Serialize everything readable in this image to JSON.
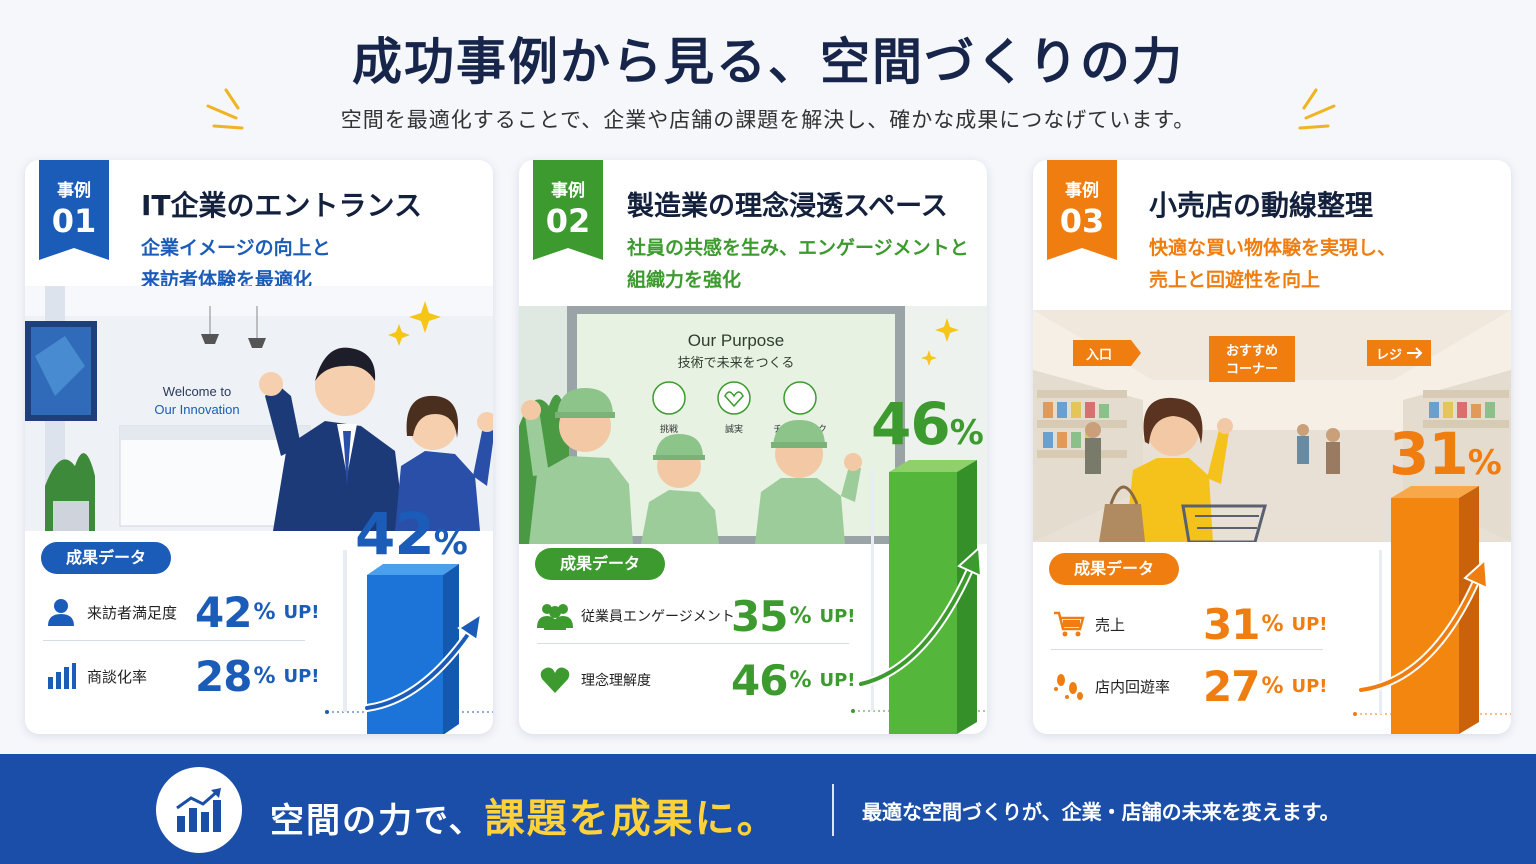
{
  "header": {
    "title": "成功事例から見る、空間づくりの力",
    "subtitle": "空間を最適化することで、企業や店舗の課題を解決し、確かな成果につなげています。"
  },
  "colors": {
    "blue": "#1b5cb8",
    "green": "#3c9a2e",
    "orange": "#f07d10",
    "navy": "#17254a",
    "yellow": "#ffd23c"
  },
  "cases": [
    {
      "tag": "事例",
      "number": "01",
      "title": "IT企業のエントランス",
      "desc1": "企業イメージの向上と",
      "desc2": "来訪者体験を最適化",
      "scene_text1": "Welcome to",
      "scene_text2": "Our Innovation",
      "data_label": "成果データ",
      "metrics": [
        {
          "icon": "person-icon",
          "label": "来訪者満足度",
          "value": "42",
          "unit": "%",
          "suffix": "UP!"
        },
        {
          "icon": "bar-chart-icon",
          "label": "商談化率",
          "value": "28",
          "unit": "%",
          "suffix": "UP!"
        }
      ],
      "big_value": "42",
      "big_unit": "%",
      "bar_level": 42
    },
    {
      "tag": "事例",
      "number": "02",
      "title": "製造業の理念浸透スペース",
      "desc1": "社員の共感を生み、エンゲージメントと",
      "desc2": "組織力を強化",
      "scene_text1": "Our Purpose",
      "scene_text2": "技術で未来をつくる",
      "values": [
        "挑戦",
        "誠実",
        "チームワーク"
      ],
      "data_label": "成果データ",
      "metrics": [
        {
          "icon": "group-icon",
          "label": "従業員エンゲージメント",
          "value": "35",
          "unit": "%",
          "suffix": "UP!"
        },
        {
          "icon": "heart-icon",
          "label": "理念理解度",
          "value": "46",
          "unit": "%",
          "suffix": "UP!"
        }
      ],
      "big_value": "46",
      "big_unit": "%",
      "bar_level": 46
    },
    {
      "tag": "事例",
      "number": "03",
      "title": "小売店の動線整理",
      "desc1": "快適な買い物体験を実現し、",
      "desc2": "売上と回遊性を向上",
      "signs": [
        "入口",
        "おすすめ",
        "コーナー",
        "レジ"
      ],
      "data_label": "成果データ",
      "metrics": [
        {
          "icon": "cart-icon",
          "label": "売上",
          "value": "31",
          "unit": "%",
          "suffix": "UP!"
        },
        {
          "icon": "footprints-icon",
          "label": "店内回遊率",
          "value": "27",
          "unit": "%",
          "suffix": "UP!"
        }
      ],
      "big_value": "31",
      "big_unit": "%",
      "bar_level": 31
    }
  ],
  "footer": {
    "icon": "growth-chart-icon",
    "main_pre": "空間の力で、",
    "main_highlight": "課題を成果に。",
    "sub": "最適な空間づくりが、企業・店舗の未来を変えます。"
  }
}
